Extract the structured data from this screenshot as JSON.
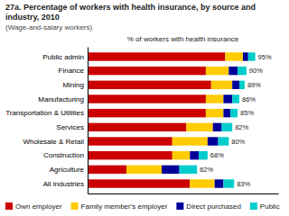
{
  "chart_data": {
    "type": "bar",
    "orientation": "horizontal",
    "stacked": true,
    "title": "27a. Percentage of workers with health insurance, by source and industry, 2010",
    "subtitle": "(Wage-and-salary workers)",
    "xlabel": "% of workers with health insurance",
    "categories": [
      "Public admin",
      "Finance",
      "Mining",
      "Manufacturing",
      "Transportation & Utilities",
      "Services",
      "Wholesale & Retail",
      "Construction",
      "Agriculture",
      "All industries"
    ],
    "series": [
      {
        "name": "Own employer",
        "color": "#cc0000",
        "values": [
          78,
          67,
          70,
          67,
          67,
          56,
          48,
          48,
          22,
          58
        ]
      },
      {
        "name": "Family member's employer",
        "color": "#ffcc00",
        "values": [
          10,
          13,
          12,
          10,
          10,
          15,
          20,
          10,
          20,
          14
        ]
      },
      {
        "name": "Direct purchased",
        "color": "#000099",
        "values": [
          3,
          5,
          4,
          5,
          4,
          5,
          6,
          5,
          10,
          5
        ]
      },
      {
        "name": "Public",
        "color": "#00cccc",
        "values": [
          4,
          5,
          3,
          4,
          4,
          6,
          6,
          5,
          10,
          6
        ]
      }
    ],
    "totals": [
      95,
      90,
      89,
      86,
      85,
      82,
      80,
      68,
      62,
      83
    ],
    "total_labels": [
      "95%",
      "90%",
      "89%",
      "86%",
      "85%",
      "82%",
      "80%",
      "68%",
      "62%",
      "83%"
    ],
    "xlim": [
      0,
      108
    ],
    "xticks": [],
    "tick_labels": "y",
    "legend": "lower left"
  }
}
